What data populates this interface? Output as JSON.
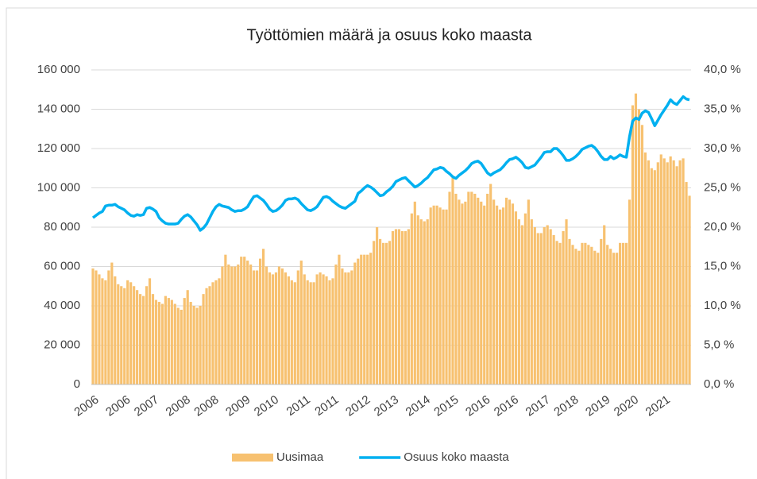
{
  "chart_data": {
    "type": "bar_line",
    "title": "Työttömien määrä ja osuus koko maasta",
    "categories": [
      "2006",
      null,
      null,
      null,
      null,
      null,
      null,
      null,
      null,
      null,
      "2006",
      null,
      null,
      null,
      null,
      null,
      null,
      null,
      null,
      "2007",
      null,
      null,
      null,
      null,
      null,
      null,
      null,
      null,
      null,
      "2008",
      null,
      null,
      null,
      null,
      null,
      null,
      null,
      null,
      "2008",
      null,
      null,
      null,
      null,
      null,
      null,
      null,
      null,
      null,
      "2009",
      null,
      null,
      null,
      null,
      null,
      null,
      null,
      null,
      "2010",
      null,
      null,
      null,
      null,
      null,
      null,
      null,
      null,
      null,
      "2011",
      null,
      null,
      null,
      null,
      null,
      null,
      null,
      null,
      "2011",
      null,
      null,
      null,
      null,
      null,
      null,
      null,
      null,
      null,
      "2012",
      null,
      null,
      null,
      null,
      null,
      null,
      null,
      null,
      "2013",
      null,
      null,
      null,
      null,
      null,
      null,
      null,
      null,
      null,
      "2014",
      null,
      null,
      null,
      null,
      null,
      null,
      null,
      null,
      "2015",
      null,
      null,
      null,
      null,
      null,
      null,
      null,
      null,
      null,
      "2016",
      null,
      null,
      null,
      null,
      null,
      null,
      null,
      null,
      "2016",
      null,
      null,
      null,
      null,
      null,
      null,
      null,
      null,
      null,
      "2017",
      null,
      null,
      null,
      null,
      null,
      null,
      null,
      null,
      "2018",
      null,
      null,
      null,
      null,
      null,
      null,
      null,
      null,
      null,
      "2019",
      null,
      null,
      null,
      null,
      null,
      null,
      null,
      null,
      "2020",
      null,
      null,
      null,
      null,
      null,
      null,
      null,
      null,
      null,
      "2021",
      null,
      null,
      null,
      null,
      null,
      null,
      null,
      null
    ],
    "series": [
      {
        "name": "Uusimaa",
        "color": "#f7c170",
        "kind": "bar",
        "values": [
          59000,
          58000,
          56000,
          54000,
          53000,
          58000,
          62000,
          55000,
          51000,
          50000,
          49000,
          53000,
          52000,
          50000,
          48000,
          46000,
          45000,
          50000,
          54000,
          46000,
          43000,
          42000,
          41000,
          45000,
          44000,
          43000,
          41000,
          39000,
          38000,
          44000,
          48000,
          42000,
          40000,
          39000,
          40000,
          46000,
          49000,
          50000,
          52000,
          53000,
          54000,
          60000,
          66000,
          61000,
          60000,
          60000,
          61000,
          65000,
          65000,
          63000,
          61000,
          58000,
          58000,
          64000,
          69000,
          60000,
          57000,
          56000,
          57000,
          60000,
          59000,
          57000,
          55000,
          53000,
          52000,
          58000,
          63000,
          56000,
          53000,
          52000,
          52000,
          56000,
          57000,
          56000,
          55000,
          53000,
          54000,
          61000,
          66000,
          59000,
          57000,
          57000,
          58000,
          62000,
          64000,
          66000,
          66000,
          66000,
          67000,
          73000,
          80000,
          74000,
          72000,
          72000,
          73000,
          78000,
          79000,
          79000,
          78000,
          78000,
          79000,
          87000,
          93000,
          86000,
          84000,
          83000,
          84000,
          90000,
          91000,
          91000,
          90000,
          89000,
          89000,
          98000,
          105000,
          97000,
          94000,
          92000,
          93000,
          98000,
          98000,
          97000,
          95000,
          93000,
          91000,
          97000,
          102000,
          94000,
          91000,
          89000,
          90000,
          95000,
          94000,
          92000,
          88000,
          84000,
          81000,
          87000,
          94000,
          84000,
          80000,
          77000,
          77000,
          80000,
          81000,
          79000,
          76000,
          73000,
          72000,
          78000,
          84000,
          74000,
          71000,
          69000,
          68000,
          72000,
          72000,
          71000,
          70000,
          68000,
          67000,
          74000,
          81000,
          71000,
          69000,
          67000,
          67000,
          72000,
          72000,
          72000,
          94000,
          142000,
          148000,
          140000,
          132000,
          118000,
          114000,
          110000,
          109000,
          113000,
          117000,
          115000,
          113000,
          116000,
          114000,
          111000,
          114000,
          115000,
          103000,
          96000
        ]
      },
      {
        "name": "Osuus koko maasta",
        "color": "#00b0f0",
        "kind": "line",
        "axis": "y2",
        "values": [
          21.2,
          21.5,
          21.8,
          22.0,
          22.7,
          22.8,
          22.8,
          22.9,
          22.6,
          22.4,
          22.2,
          21.8,
          21.5,
          21.4,
          21.6,
          21.5,
          21.6,
          22.4,
          22.5,
          22.3,
          22.0,
          21.2,
          20.8,
          20.5,
          20.4,
          20.4,
          20.4,
          20.5,
          21.0,
          21.4,
          21.6,
          21.3,
          20.8,
          20.3,
          19.6,
          19.9,
          20.4,
          21.2,
          22.0,
          22.6,
          22.9,
          22.7,
          22.6,
          22.5,
          22.2,
          22.0,
          22.1,
          22.1,
          22.3,
          22.6,
          23.3,
          23.9,
          24.0,
          23.7,
          23.4,
          22.9,
          22.3,
          22.0,
          22.1,
          22.4,
          22.8,
          23.4,
          23.6,
          23.6,
          23.7,
          23.5,
          23.0,
          22.6,
          22.2,
          22.1,
          22.3,
          22.6,
          23.2,
          23.8,
          23.9,
          23.7,
          23.3,
          23.0,
          22.7,
          22.5,
          22.4,
          22.7,
          23.0,
          23.3,
          24.3,
          24.6,
          25.0,
          25.3,
          25.1,
          24.8,
          24.4,
          24.0,
          24.1,
          24.5,
          24.8,
          25.2,
          25.8,
          26.0,
          26.2,
          26.3,
          25.9,
          25.5,
          25.1,
          25.3,
          25.6,
          26.0,
          26.3,
          26.8,
          27.3,
          27.4,
          27.6,
          27.5,
          27.1,
          26.8,
          26.4,
          26.2,
          26.6,
          26.9,
          27.2,
          27.6,
          28.1,
          28.3,
          28.4,
          28.1,
          27.5,
          26.9,
          26.6,
          26.9,
          27.1,
          27.3,
          27.7,
          28.2,
          28.6,
          28.7,
          28.9,
          28.6,
          28.2,
          27.6,
          27.5,
          27.7,
          27.9,
          28.4,
          28.9,
          29.5,
          29.6,
          29.6,
          30.0,
          30.0,
          29.6,
          29.1,
          28.5,
          28.5,
          28.7,
          29.0,
          29.4,
          29.9,
          30.1,
          30.3,
          30.4,
          30.1,
          29.6,
          29.0,
          28.6,
          28.6,
          29.0,
          28.7,
          28.9,
          29.2,
          29.0,
          28.9,
          31.5,
          33.5,
          33.9,
          33.7,
          34.5,
          34.8,
          34.6,
          33.8,
          32.9,
          33.6,
          34.3,
          34.9,
          35.5,
          36.2,
          35.8,
          35.6,
          36.1,
          36.6,
          36.3,
          36.2
        ]
      }
    ],
    "ylim": [
      0,
      160000
    ],
    "yticks": [
      0,
      {
        "value": 20000,
        "label": "20 000"
      },
      {
        "value": 40000,
        "label": "40 000"
      },
      {
        "value": 60000,
        "label": "60 000"
      },
      {
        "value": 80000,
        "label": "80 000"
      },
      {
        "value": 100000,
        "label": "100 000"
      },
      {
        "value": 120000,
        "label": "120 000"
      },
      {
        "value": 140000,
        "label": "140 000"
      },
      {
        "value": 160000,
        "label": "160 000"
      }
    ],
    "y2lim": [
      0,
      40
    ],
    "y2ticks": [
      {
        "value": 0,
        "label": "0,0 %"
      },
      {
        "value": 5,
        "label": "5,0 %"
      },
      {
        "value": 10,
        "label": "10,0 %"
      },
      {
        "value": 15,
        "label": "15,0 %"
      },
      {
        "value": 20,
        "label": "20,0 %"
      },
      {
        "value": 25,
        "label": "25,0 %"
      },
      {
        "value": 30,
        "label": "30,0 %"
      },
      {
        "value": 35,
        "label": "35,0 %"
      },
      {
        "value": 40,
        "label": "40,0 %"
      }
    ],
    "grid": true,
    "legend": "bottom"
  }
}
